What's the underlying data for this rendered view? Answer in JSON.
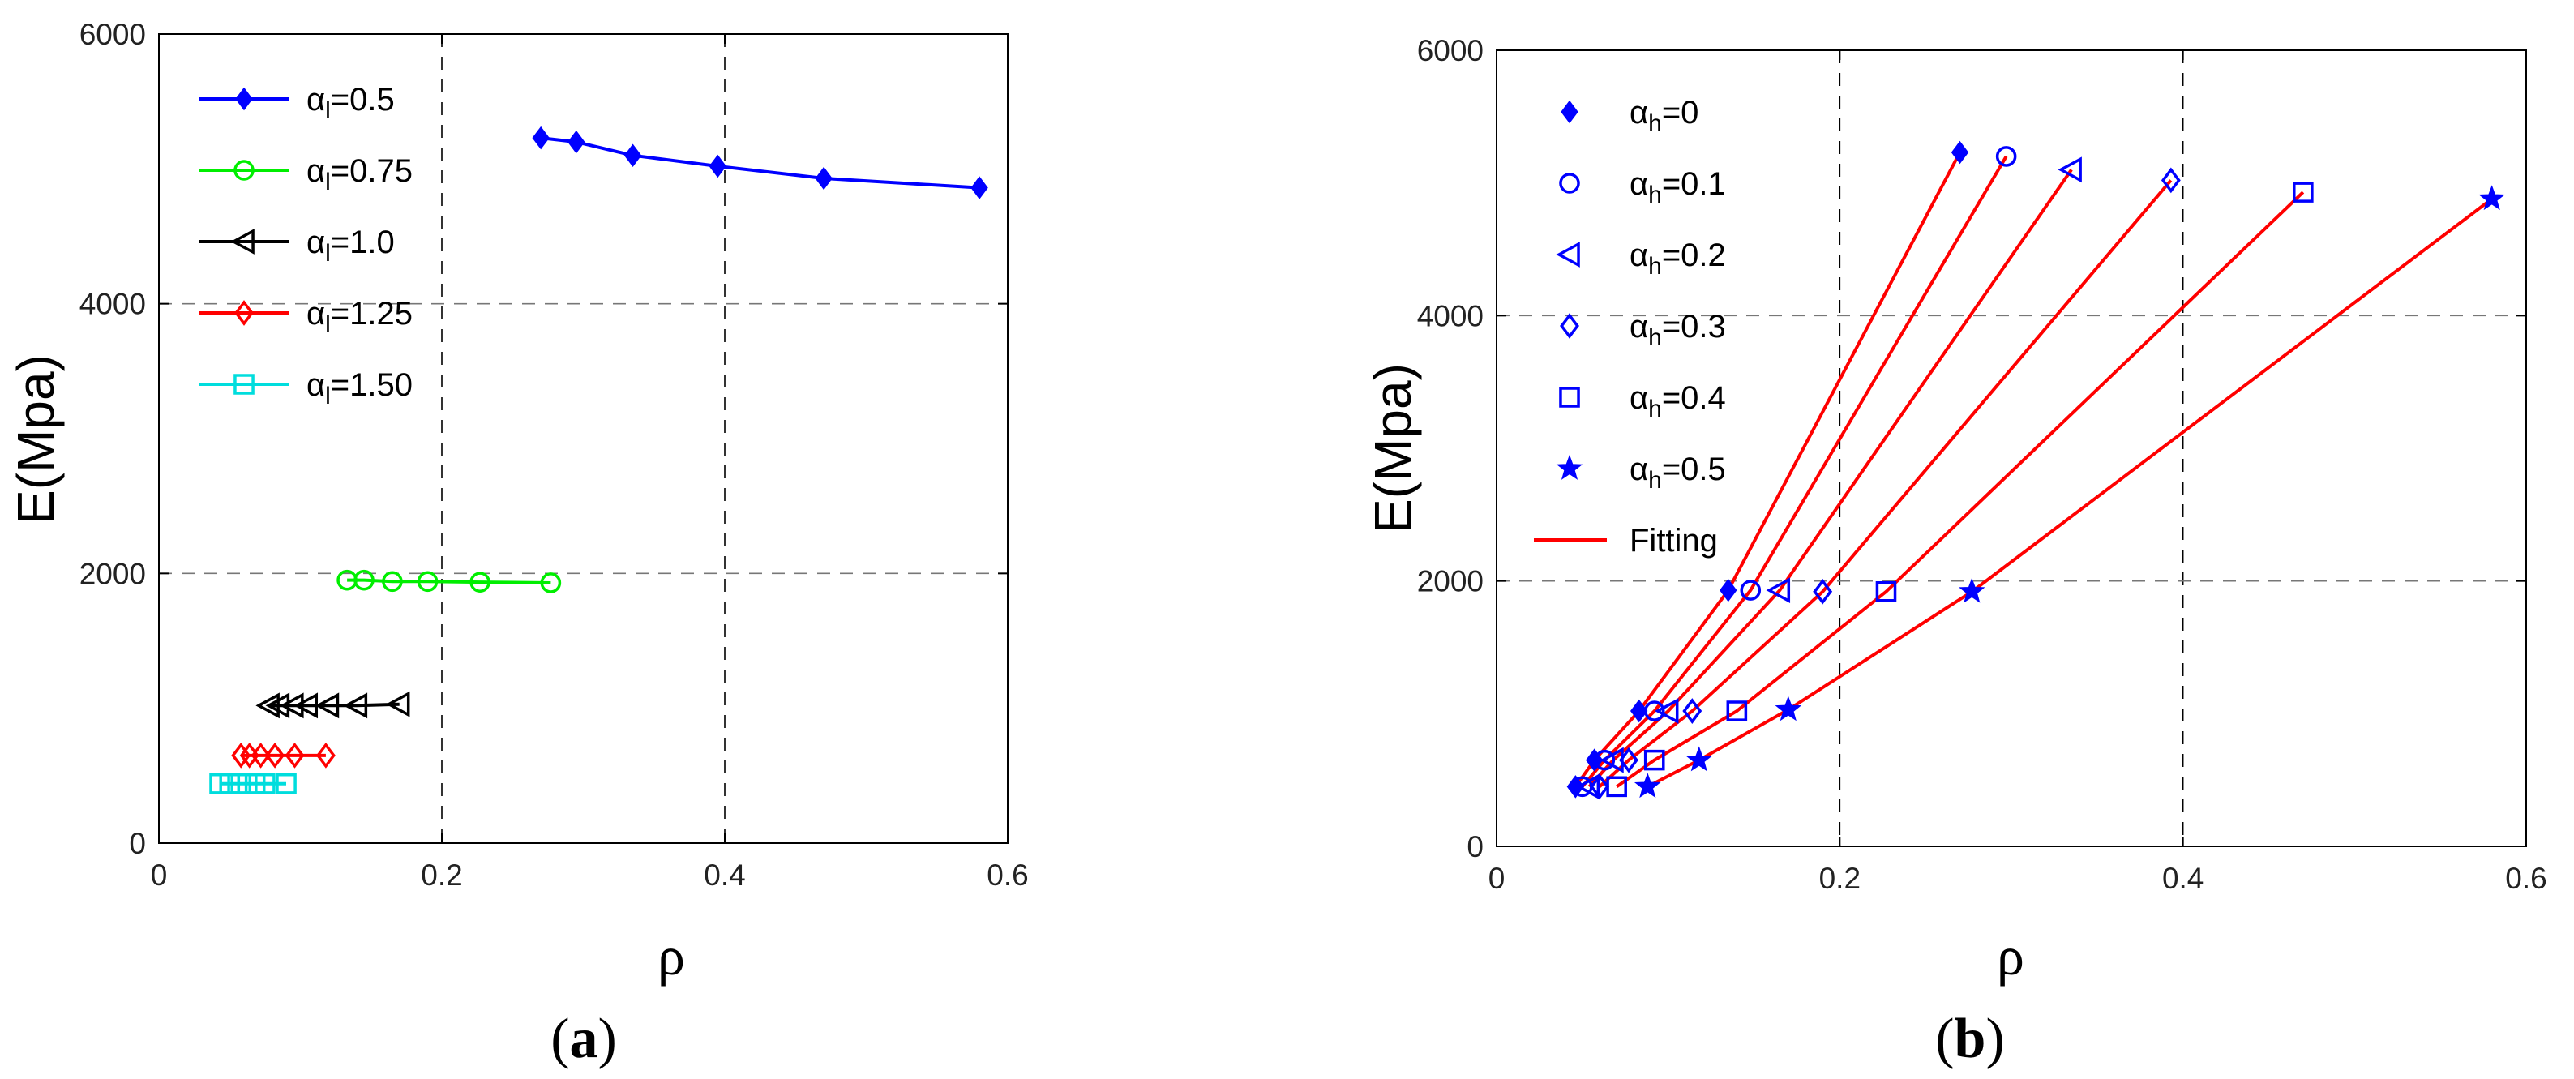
{
  "chart_data": [
    {
      "panel_label": "(a)",
      "panel_letter": "a",
      "type": "line",
      "title": "",
      "xlabel": "ρ",
      "ylabel": "E(Mpa)",
      "xlim": [
        0,
        0.6
      ],
      "ylim": [
        0,
        6000
      ],
      "xticks": [
        0,
        0.2,
        0.4,
        0.6
      ],
      "xtick_labels": [
        "0",
        "0.2",
        "0.4",
        "0.6"
      ],
      "yticks": [
        0,
        2000,
        4000,
        6000
      ],
      "ytick_labels": [
        "0",
        "2000",
        "4000",
        "6000"
      ],
      "grid_x": [
        0.2,
        0.4
      ],
      "grid_y": [
        2000,
        4000
      ],
      "legend": {
        "placement": "top-left"
      },
      "series": [
        {
          "name": "α_l=0.5",
          "symbol": "α",
          "sub": "l",
          "suffix": "=0.5",
          "color": "#0000ff",
          "marker": "filled-diamond",
          "x": [
            0.27,
            0.295,
            0.335,
            0.395,
            0.47,
            0.58
          ],
          "y": [
            5230,
            5200,
            5100,
            5020,
            4930,
            4860
          ]
        },
        {
          "name": "α_l=0.75",
          "symbol": "α",
          "sub": "l",
          "suffix": "=0.75",
          "color": "#00ee00",
          "marker": "circle",
          "x": [
            0.133,
            0.145,
            0.165,
            0.19,
            0.227,
            0.277
          ],
          "y": [
            1950,
            1950,
            1940,
            1940,
            1935,
            1930
          ]
        },
        {
          "name": "α_l=1.0",
          "symbol": "α",
          "sub": "l",
          "suffix": "=1.0",
          "color": "#000000",
          "marker": "triangle-left",
          "x": [
            0.078,
            0.085,
            0.095,
            0.105,
            0.12,
            0.14,
            0.17
          ],
          "y": [
            1020,
            1020,
            1020,
            1020,
            1020,
            1020,
            1030
          ]
        },
        {
          "name": "α_l=1.25",
          "symbol": "α",
          "sub": "l",
          "suffix": "=1.25",
          "color": "#ff0000",
          "marker": "diamond",
          "x": [
            0.058,
            0.064,
            0.072,
            0.082,
            0.096,
            0.118
          ],
          "y": [
            650,
            650,
            650,
            650,
            650,
            650
          ]
        },
        {
          "name": "α_l=1.50",
          "symbol": "α",
          "sub": "l",
          "suffix": "=1.50",
          "color": "#00dddd",
          "marker": "square",
          "x": [
            0.043,
            0.05,
            0.058,
            0.068,
            0.075,
            0.09
          ],
          "y": [
            440,
            440,
            440,
            440,
            440,
            440
          ]
        }
      ]
    },
    {
      "panel_label": "(b)",
      "panel_letter": "b",
      "type": "scatter",
      "title": "",
      "xlabel": "ρ",
      "ylabel": "E(Mpa)",
      "xlim": [
        0,
        0.6
      ],
      "ylim": [
        0,
        6000
      ],
      "xticks": [
        0,
        0.2,
        0.4,
        0.6
      ],
      "xtick_labels": [
        "0",
        "0.2",
        "0.4",
        "0.6"
      ],
      "yticks": [
        0,
        2000,
        4000,
        6000
      ],
      "ytick_labels": [
        "0",
        "2000",
        "4000",
        "6000"
      ],
      "grid_x": [
        0.2,
        0.4
      ],
      "grid_y": [
        2000,
        4000
      ],
      "legend": {
        "placement": "top-left"
      },
      "fit_color": "#ff0000",
      "fit_label": "Fitting",
      "series": [
        {
          "name": "α_h=0",
          "symbol": "α",
          "sub": "h",
          "suffix": "=0",
          "color": "#0000ff",
          "marker": "filled-diamond",
          "x": [
            0.046,
            0.057,
            0.083,
            0.135,
            0.27
          ],
          "y": [
            450,
            650,
            1020,
            1930,
            5230
          ]
        },
        {
          "name": "α_h=0.1",
          "symbol": "α",
          "sub": "h",
          "suffix": "=0.1",
          "color": "#0000ff",
          "marker": "circle",
          "x": [
            0.05,
            0.063,
            0.092,
            0.148,
            0.297
          ],
          "y": [
            450,
            650,
            1020,
            1930,
            5200
          ]
        },
        {
          "name": "α_h=0.2",
          "symbol": "α",
          "sub": "h",
          "suffix": "=0.2",
          "color": "#0000ff",
          "marker": "triangle-left",
          "x": [
            0.054,
            0.068,
            0.1,
            0.165,
            0.335
          ],
          "y": [
            450,
            650,
            1020,
            1930,
            5100
          ]
        },
        {
          "name": "α_h=0.3",
          "symbol": "α",
          "sub": "h",
          "suffix": "=0.3",
          "color": "#0000ff",
          "marker": "diamond",
          "x": [
            0.06,
            0.077,
            0.114,
            0.19,
            0.393
          ],
          "y": [
            450,
            650,
            1020,
            1920,
            5020
          ]
        },
        {
          "name": "α_h=0.4",
          "symbol": "α",
          "sub": "h",
          "suffix": "=0.4",
          "color": "#0000ff",
          "marker": "square",
          "x": [
            0.07,
            0.092,
            0.14,
            0.227,
            0.47
          ],
          "y": [
            450,
            650,
            1020,
            1920,
            4930
          ]
        },
        {
          "name": "α_h=0.5",
          "symbol": "α",
          "sub": "h",
          "suffix": "=0.5",
          "color": "#0000ff",
          "marker": "star",
          "x": [
            0.088,
            0.118,
            0.17,
            0.277,
            0.58
          ],
          "y": [
            450,
            650,
            1030,
            1920,
            4880
          ]
        }
      ]
    }
  ]
}
